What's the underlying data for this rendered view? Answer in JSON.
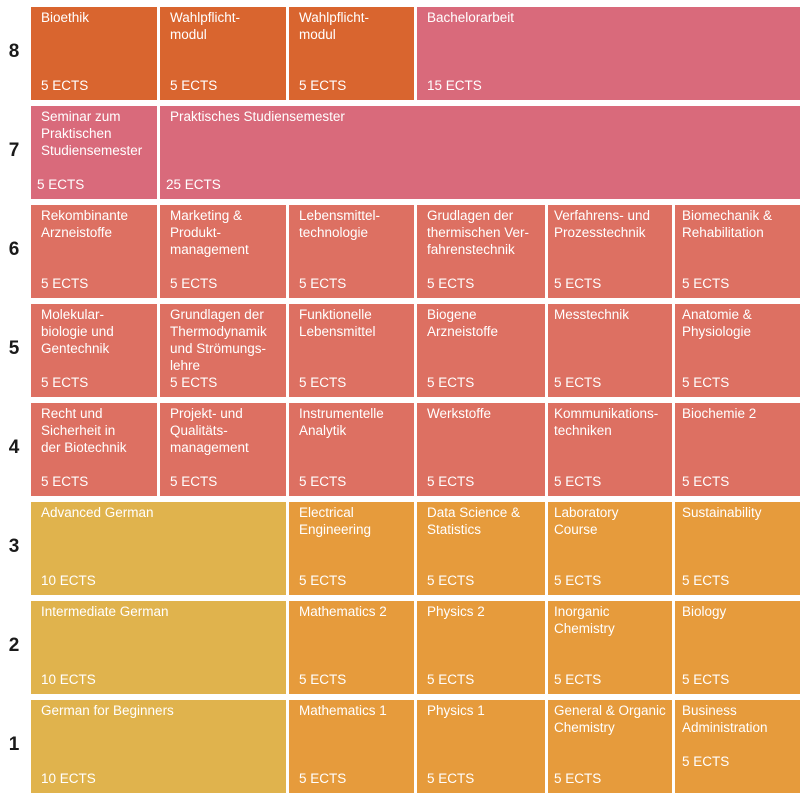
{
  "semesters": [
    {
      "number": "8",
      "cells": [
        {
          "title": "Bioethik",
          "ects": "5 ECTS"
        },
        {
          "title": "Wahlpflicht-\nmodul",
          "ects": "5 ECTS"
        },
        {
          "title": "Wahlpflicht-\nmodul",
          "ects": "5 ECTS"
        },
        {
          "title": "Bachelorarbeit",
          "ects": "15 ECTS"
        }
      ]
    },
    {
      "number": "7",
      "cells": [
        {
          "title": "Seminar zum\nPraktischen\nStudiensemester",
          "ects": "5 ECTS"
        },
        {
          "title": "Praktisches Studiensemester",
          "ects": "25 ECTS"
        }
      ]
    },
    {
      "number": "6",
      "cells": [
        {
          "title": "Rekombinante\nArzneistoffe",
          "ects": "5 ECTS"
        },
        {
          "title": "Marketing &\nProdukt-\nmanagement",
          "ects": "5 ECTS"
        },
        {
          "title": "Lebensmittel-\ntechnologie",
          "ects": "5 ECTS"
        },
        {
          "title": "Grudlagen der\nthermischen Ver-\nfahrenstechnik",
          "ects": "5 ECTS"
        },
        {
          "title": "Verfahrens- und\nProzesstechnik",
          "ects": "5 ECTS"
        },
        {
          "title": "Biomechanik &\nRehabilitation",
          "ects": "5 ECTS"
        }
      ]
    },
    {
      "number": "5",
      "cells": [
        {
          "title": "Molekular-\nbiologie und\nGentechnik",
          "ects": "5 ECTS"
        },
        {
          "title": "Grundlagen der\nThermodynamik\nund Strömungs-\nlehre",
          "ects": "5 ECTS"
        },
        {
          "title": "Funktionelle\nLebensmittel",
          "ects": "5 ECTS"
        },
        {
          "title": "Biogene\nArzneistoffe",
          "ects": "5 ECTS"
        },
        {
          "title": "Messtechnik",
          "ects": "5 ECTS"
        },
        {
          "title": "Anatomie &\nPhysiologie",
          "ects": "5 ECTS"
        }
      ]
    },
    {
      "number": "4",
      "cells": [
        {
          "title": "Recht und\nSicherheit in\nder Biotechnik",
          "ects": "5 ECTS"
        },
        {
          "title": "Projekt- und\nQualitäts-\nmanagement",
          "ects": "5 ECTS"
        },
        {
          "title": "Instrumentelle\nAnalytik",
          "ects": "5 ECTS"
        },
        {
          "title": "Werkstoffe",
          "ects": "5 ECTS"
        },
        {
          "title": "Kommunikations-\ntechniken",
          "ects": "5 ECTS"
        },
        {
          "title": "Biochemie 2",
          "ects": "5 ECTS"
        }
      ]
    },
    {
      "number": "3",
      "cells": [
        {
          "title": "Advanced German",
          "ects": "10 ECTS"
        },
        {
          "title": "Electrical\nEngineering",
          "ects": "5 ECTS"
        },
        {
          "title": "Data Science &\nStatistics",
          "ects": "5 ECTS"
        },
        {
          "title": "Laboratory\nCourse",
          "ects": "5 ECTS"
        },
        {
          "title": "Sustainability",
          "ects": "5 ECTS"
        }
      ]
    },
    {
      "number": "2",
      "cells": [
        {
          "title": "Intermediate German",
          "ects": "10 ECTS"
        },
        {
          "title": "Mathematics 2",
          "ects": "5 ECTS"
        },
        {
          "title": "Physics 2",
          "ects": "5 ECTS"
        },
        {
          "title": "Inorganic\nChemistry",
          "ects": "5 ECTS"
        },
        {
          "title": "Biology",
          "ects": "5 ECTS"
        }
      ]
    },
    {
      "number": "1",
      "cells": [
        {
          "title": "German for Beginners",
          "ects": "10 ECTS"
        },
        {
          "title": "Mathematics 1",
          "ects": "5 ECTS"
        },
        {
          "title": "Physics 1",
          "ects": "5 ECTS"
        },
        {
          "title": "General & Organic\nChemistry",
          "ects": "5 ECTS"
        },
        {
          "title": "Business\nAdministration",
          "ects": "5 ECTS"
        }
      ]
    }
  ],
  "colors": {
    "orange": "#d9652f",
    "pink": "#d96a7b",
    "salmon": "#dd7062",
    "yellow": "#e0b34d",
    "amber": "#e69b3c"
  }
}
